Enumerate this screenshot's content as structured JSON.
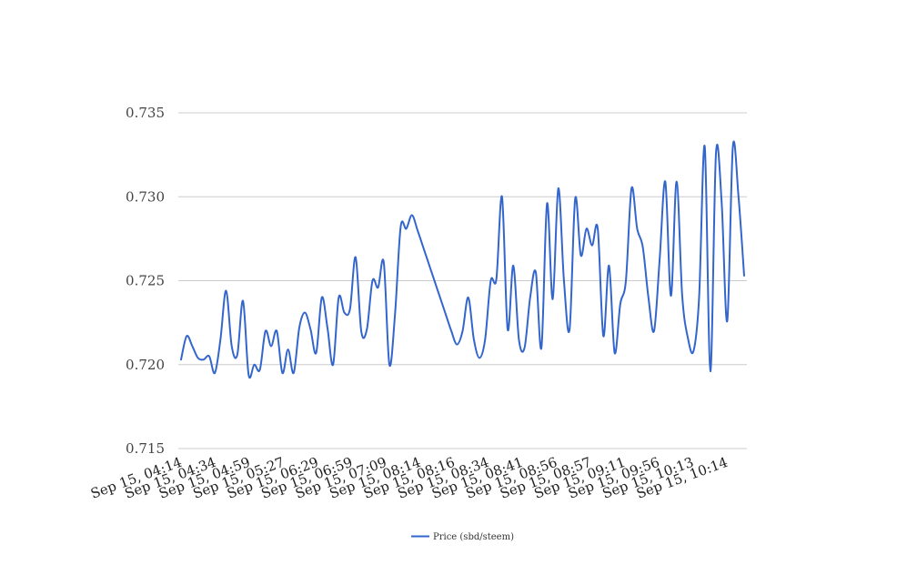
{
  "chart_data": {
    "type": "line",
    "title": "",
    "xlabel": "",
    "ylabel": "",
    "ylim": [
      0.715,
      0.735
    ],
    "y_ticks": [
      "0.715",
      "0.720",
      "0.725",
      "0.730",
      "0.735"
    ],
    "y_tick_values": [
      0.715,
      0.72,
      0.725,
      0.73,
      0.735
    ],
    "x_tick_labels": [
      "Sep 15, 04:14",
      "Sep 15, 04:34",
      "Sep 15, 04:59",
      "Sep 15, 05:27",
      "Sep 15, 06:29",
      "Sep 15, 06:59",
      "Sep 15, 07:09",
      "Sep 15, 08:14",
      "Sep 15, 08:16",
      "Sep 15, 08:34",
      "Sep 15, 08:41",
      "Sep 15, 08:56",
      "Sep 15, 08:57",
      "Sep 15, 09:11",
      "Sep 15, 09:56",
      "Sep 15, 10:13",
      "Sep 15, 10:14"
    ],
    "grid": true,
    "legend_position": "bottom-center",
    "series": [
      {
        "name": "Price (sbd/steem)",
        "color": "#3366cc",
        "values": [
          0.7203,
          0.7217,
          0.7211,
          0.7204,
          0.7203,
          0.7205,
          0.7195,
          0.7215,
          0.7244,
          0.7211,
          0.7206,
          0.7238,
          0.7194,
          0.72,
          0.7197,
          0.722,
          0.7211,
          0.722,
          0.7195,
          0.7209,
          0.7195,
          0.7222,
          0.7231,
          0.7221,
          0.7207,
          0.724,
          0.7222,
          0.72,
          0.724,
          0.7231,
          0.7233,
          0.7264,
          0.722,
          0.7221,
          0.725,
          0.7246,
          0.7261,
          0.72,
          0.723,
          0.7282,
          0.7281,
          0.7289,
          0.728,
          0.727,
          0.726,
          0.725,
          0.724,
          0.723,
          0.722,
          0.7212,
          0.722,
          0.724,
          0.7215,
          0.7204,
          0.7215,
          0.725,
          0.7251,
          0.73,
          0.7221,
          0.7259,
          0.7215,
          0.721,
          0.724,
          0.7255,
          0.721,
          0.7296,
          0.7239,
          0.7305,
          0.725,
          0.7221,
          0.7299,
          0.7265,
          0.7281,
          0.7271,
          0.7281,
          0.7217,
          0.7259,
          0.7207,
          0.7236,
          0.725,
          0.7305,
          0.7281,
          0.727,
          0.724,
          0.722,
          0.7263,
          0.7309,
          0.7241,
          0.7309,
          0.7241,
          0.7216,
          0.7208,
          0.724,
          0.733,
          0.7196,
          0.7326,
          0.7297,
          0.7226,
          0.733,
          0.73,
          0.7253
        ]
      }
    ]
  }
}
